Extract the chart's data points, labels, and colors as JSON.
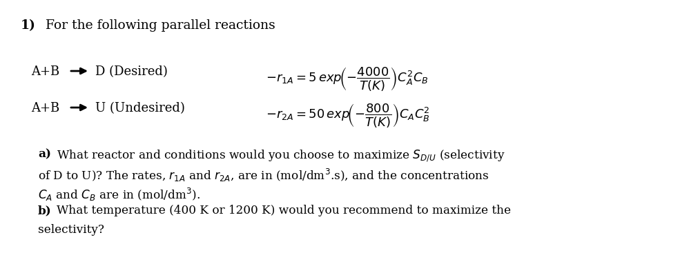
{
  "bg_color": "#ffffff",
  "fontsize_title": 13.5,
  "fontsize_reactions": 13,
  "fontsize_body": 12.2,
  "title_num": "1)",
  "title_rest": "For the following parallel reactions",
  "rxn1_left": "A+B",
  "rxn1_right_label": "D (Desired)",
  "rxn1_eq": "$-r_{1A} = 5\\, exp\\!\\left(-\\dfrac{4000}{T(K)}\\right) C_A^2 C_B$",
  "rxn2_left": "A+B",
  "rxn2_right_label": "U (Undesired)",
  "rxn2_eq": "$-r_{2A} = 50\\, exp\\!\\left(-\\dfrac{800}{T(K)}\\right) C_A C_B^2$",
  "a_label": "a)",
  "a_line1": "What reactor and conditions would you choose to maximize $S_{D/U}$ (selectivity",
  "a_line2": "of D to U)? The rates, $r_{1A}$ and $r_{2A}$, are in (mol/dm$^3$.s), and the concentrations",
  "a_line3": "$C_A$ and $C_B$ are in (mol/dm$^3$).",
  "b_label": "b)",
  "b_line1": "What temperature (400 K or 1200 K) would you recommend to maximize the",
  "b_line2": "selectivity?"
}
